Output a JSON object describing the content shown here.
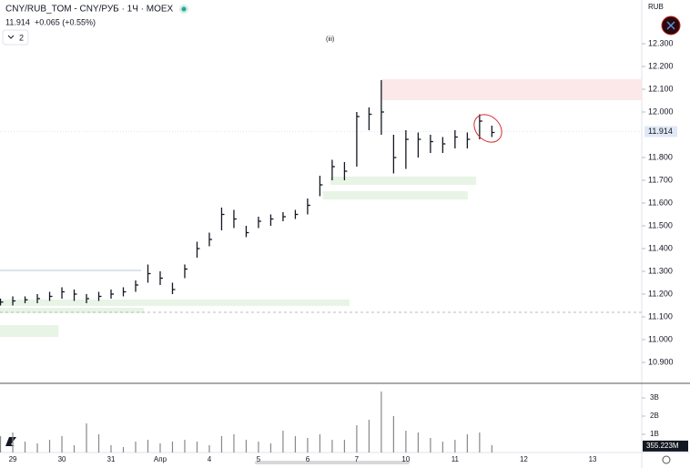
{
  "chart_data": {
    "type": "ohlc",
    "title": "CNY/RUB_TOM - CNY/РУБ · 1Ч · MOEX",
    "last_price": 11.914,
    "change": "+0.065 (+0.55%)",
    "indicator_count": "2",
    "wave_label": "(iii)",
    "currency": "RUB",
    "x": [
      -0.25,
      0,
      0.25,
      0.5,
      0.75,
      1,
      1.25,
      1.5,
      1.75,
      2,
      2.25,
      2.5,
      2.75,
      3,
      3.25,
      3.5,
      3.75,
      4,
      4.25,
      4.5,
      4.75,
      5,
      5.25,
      5.5,
      5.75,
      6,
      6.25,
      6.5,
      6.75,
      7,
      7.25,
      7.5,
      7.75,
      8,
      8.25,
      8.5,
      8.75,
      9,
      9.25,
      9.5,
      9.75
    ],
    "high": [
      11.18,
      11.19,
      11.19,
      11.2,
      11.21,
      11.23,
      11.22,
      11.2,
      11.21,
      11.22,
      11.23,
      11.26,
      11.33,
      11.3,
      11.25,
      11.33,
      11.43,
      11.47,
      11.58,
      11.57,
      11.5,
      11.54,
      11.55,
      11.56,
      11.57,
      11.62,
      11.72,
      11.79,
      11.78,
      12.0,
      12.02,
      12.14,
      11.9,
      11.92,
      11.91,
      11.9,
      11.89,
      11.92,
      11.91,
      11.99,
      11.94
    ],
    "low": [
      11.15,
      11.15,
      11.16,
      11.16,
      11.17,
      11.18,
      11.17,
      11.16,
      11.17,
      11.18,
      11.19,
      11.21,
      11.25,
      11.24,
      11.2,
      11.27,
      11.36,
      11.41,
      11.48,
      11.49,
      11.45,
      11.49,
      11.5,
      11.52,
      11.53,
      11.55,
      11.63,
      11.7,
      11.7,
      11.76,
      11.92,
      11.9,
      11.73,
      11.75,
      11.8,
      11.82,
      11.82,
      11.84,
      11.84,
      11.88,
      11.89
    ],
    "close": [
      11.165,
      11.17,
      11.175,
      11.18,
      11.19,
      11.21,
      11.2,
      11.18,
      11.19,
      11.2,
      11.21,
      11.24,
      11.29,
      11.27,
      11.22,
      11.31,
      11.4,
      11.44,
      11.55,
      11.53,
      11.47,
      11.52,
      11.53,
      11.54,
      11.55,
      11.59,
      11.68,
      11.76,
      11.74,
      11.98,
      11.99,
      12.0,
      11.8,
      11.88,
      11.88,
      11.87,
      11.86,
      11.89,
      11.88,
      11.96,
      11.91
    ],
    "volume": [
      0.9,
      1.1,
      0.6,
      0.5,
      0.7,
      0.9,
      0.4,
      1.6,
      1.0,
      0.4,
      0.3,
      0.6,
      0.7,
      0.5,
      0.6,
      0.7,
      0.6,
      0.4,
      0.9,
      1.0,
      0.7,
      0.6,
      0.5,
      1.2,
      0.9,
      0.8,
      1.0,
      0.7,
      0.7,
      1.5,
      1.8,
      3.35,
      2.0,
      1.2,
      1.1,
      0.8,
      0.6,
      0.7,
      1.0,
      1.1,
      0.4
    ],
    "last_volume": {
      "value": 0.355223,
      "label": "355.223M"
    },
    "zones": [
      {
        "x0": 7.5,
        "x1": 12.8,
        "y0": 12.052,
        "y1": 12.144,
        "color": "#fce8e8"
      },
      {
        "x0": 6.46,
        "x1": 9.43,
        "y0": 11.68,
        "y1": 11.716,
        "color": "#e8f4e6"
      },
      {
        "x0": 6.31,
        "x1": 9.26,
        "y0": 11.616,
        "y1": 11.652,
        "color": "#e8f4e6"
      },
      {
        "x0": -0.26,
        "x1": 6.85,
        "y0": 11.148,
        "y1": 11.176,
        "color": "#e8f4e6"
      },
      {
        "x0": -0.26,
        "x1": 2.67,
        "y0": 11.116,
        "y1": 11.14,
        "color": "#e8f4e6"
      },
      {
        "x0": -0.26,
        "x1": 0.93,
        "y0": 11.012,
        "y1": 11.064,
        "color": "#e8f4e6"
      }
    ],
    "level": 11.304,
    "dashed_level": 11.12,
    "xlim": [
      -0.26,
      12.8
    ],
    "ylim": [
      10.812,
      12.492
    ],
    "vlim": [
      0,
      3.75
    ],
    "xticks": [
      {
        "value": 0,
        "label": "29"
      },
      {
        "value": 1,
        "label": "30"
      },
      {
        "value": 2,
        "label": "31"
      },
      {
        "value": 3,
        "label": "Апр"
      },
      {
        "value": 4,
        "label": "4"
      },
      {
        "value": 5,
        "label": "5"
      },
      {
        "value": 6,
        "label": "6"
      },
      {
        "value": 7,
        "label": "7"
      },
      {
        "value": 8,
        "label": "10"
      },
      {
        "value": 9,
        "label": "11"
      },
      {
        "value": 10.4,
        "label": "12"
      },
      {
        "value": 11.8,
        "label": "13"
      }
    ],
    "yticks": [
      {
        "value": 12.3,
        "label": "12.300"
      },
      {
        "value": 12.2,
        "label": "12.200"
      },
      {
        "value": 12.1,
        "label": "12.100"
      },
      {
        "value": 12.0,
        "label": "12.000"
      },
      {
        "value": 11.8,
        "label": "11.800"
      },
      {
        "value": 11.7,
        "label": "11.700"
      },
      {
        "value": 11.6,
        "label": "11.600"
      },
      {
        "value": 11.5,
        "label": "11.500"
      },
      {
        "value": 11.4,
        "label": "11.400"
      },
      {
        "value": 11.3,
        "label": "11.300"
      },
      {
        "value": 11.2,
        "label": "11.200"
      },
      {
        "value": 11.1,
        "label": "11.100"
      },
      {
        "value": 11.0,
        "label": "11.000"
      },
      {
        "value": 10.9,
        "label": "10.900"
      }
    ],
    "vticks": [
      {
        "value": 3,
        "label": "3B"
      },
      {
        "value": 2,
        "label": "2B"
      },
      {
        "value": 1,
        "label": "1B"
      }
    ],
    "color": "#131722",
    "volume_color": "#888"
  }
}
